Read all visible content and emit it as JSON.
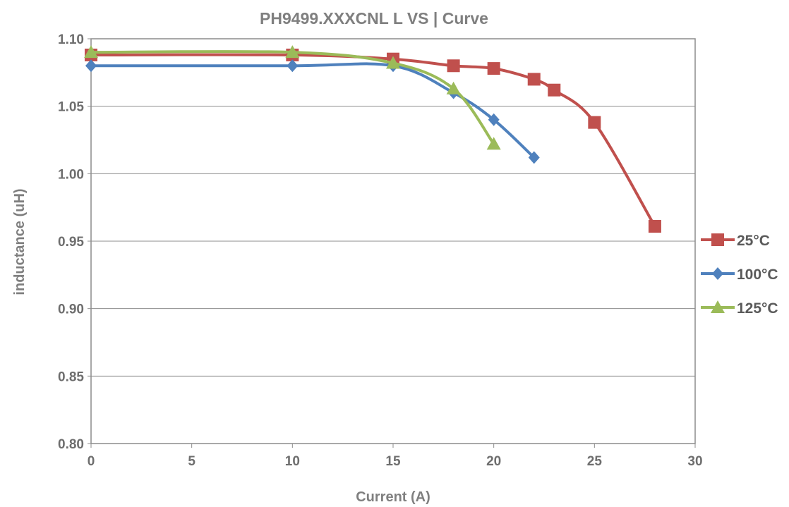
{
  "chart_data": {
    "type": "line",
    "title": "PH9499.XXXCNL L VS | Curve",
    "xlabel": "Current (A)",
    "ylabel": "inductance (uH)",
    "xlim": [
      0,
      30
    ],
    "ylim": [
      0.8,
      1.1
    ],
    "x_ticks": [
      "0",
      "5",
      "10",
      "15",
      "20",
      "25",
      "30"
    ],
    "y_ticks": [
      "0.80",
      "0.85",
      "0.90",
      "0.95",
      "1.00",
      "1.05",
      "1.10"
    ],
    "grid": "horizontal",
    "legend_position": "right",
    "series": [
      {
        "name": "25°C",
        "color": "#c0504d",
        "marker": "square",
        "points": [
          [
            0,
            1.088
          ],
          [
            10,
            1.088
          ],
          [
            15,
            1.085
          ],
          [
            18,
            1.08
          ],
          [
            20,
            1.078
          ],
          [
            22,
            1.07
          ],
          [
            23,
            1.062
          ],
          [
            25,
            1.038
          ],
          [
            28,
            0.961
          ]
        ]
      },
      {
        "name": "100°C",
        "color": "#4f81bd",
        "marker": "diamond",
        "points": [
          [
            0,
            1.08
          ],
          [
            10,
            1.08
          ],
          [
            15,
            1.08
          ],
          [
            18,
            1.06
          ],
          [
            20,
            1.04
          ],
          [
            22,
            1.012
          ]
        ]
      },
      {
        "name": "125°C",
        "color": "#9bbb59",
        "marker": "triangle",
        "points": [
          [
            0,
            1.09
          ],
          [
            10,
            1.09
          ],
          [
            15,
            1.082
          ],
          [
            18,
            1.063
          ],
          [
            20,
            1.022
          ]
        ]
      }
    ]
  }
}
